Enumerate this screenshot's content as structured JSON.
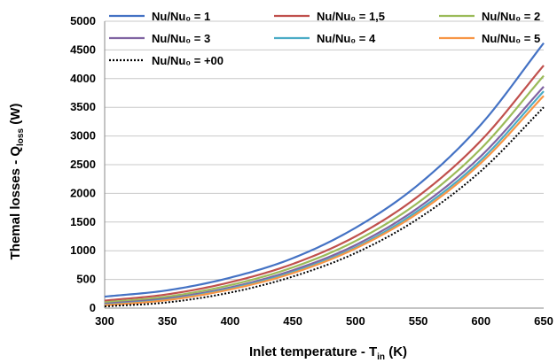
{
  "chart_data": {
    "type": "line",
    "xlabel": {
      "main": "Inlet temperature - T",
      "sub": "in",
      "unit": " (K)"
    },
    "ylabel": {
      "main": "Themal losses - Q",
      "sub": "loss",
      "unit": " (W)"
    },
    "xlim": [
      300,
      650
    ],
    "ylim": [
      0,
      5000
    ],
    "xticks": [
      300,
      350,
      400,
      450,
      500,
      550,
      600,
      650
    ],
    "yticks": [
      0,
      500,
      1000,
      1500,
      2000,
      2500,
      3000,
      3500,
      4000,
      4500,
      5000
    ],
    "grid": "horizontal",
    "legend_position": "top",
    "x": [
      300,
      350,
      400,
      450,
      500,
      550,
      600,
      650
    ],
    "series": [
      {
        "name": "Nu/Nu₀ = 1",
        "color": "#4472C4",
        "dash": "solid",
        "values": [
          200,
          310,
          530,
          870,
          1400,
          2150,
          3200,
          4620
        ]
      },
      {
        "name": "Nu/Nu₀ = 1,5",
        "color": "#C0504D",
        "dash": "solid",
        "values": [
          130,
          240,
          450,
          770,
          1250,
          1950,
          2920,
          4230
        ]
      },
      {
        "name": "Nu/Nu₀ = 2",
        "color": "#9BBB59",
        "dash": "solid",
        "values": [
          100,
          200,
          400,
          710,
          1170,
          1840,
          2780,
          4050
        ]
      },
      {
        "name": "Nu/Nu₀ = 3",
        "color": "#8064A2",
        "dash": "solid",
        "values": [
          75,
          170,
          360,
          660,
          1100,
          1750,
          2650,
          3860
        ]
      },
      {
        "name": "Nu/Nu₀ = 4",
        "color": "#4BACC6",
        "dash": "solid",
        "values": [
          60,
          150,
          340,
          630,
          1060,
          1700,
          2580,
          3780
        ]
      },
      {
        "name": "Nu/Nu₀ = 5",
        "color": "#F79646",
        "dash": "solid",
        "values": [
          50,
          140,
          325,
          610,
          1040,
          1660,
          2530,
          3700
        ]
      },
      {
        "name": "Nu/Nu₀ = +00",
        "color": "#000000",
        "dash": "dotted",
        "values": [
          30,
          100,
          270,
          550,
          960,
          1560,
          2390,
          3500
        ]
      }
    ]
  }
}
